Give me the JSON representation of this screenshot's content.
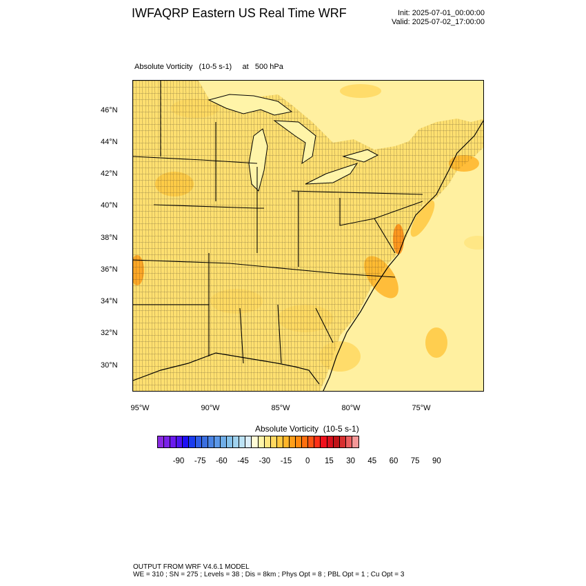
{
  "header": {
    "title": "IWFAQRP Eastern US Real Time WRF",
    "init": "Init: 2025-07-01_00:00:00",
    "valid": "Valid: 2025-07-02_17:00:00"
  },
  "plot": {
    "subtitle": "Absolute Vorticity   (10-5 s-1)     at   500 hPa",
    "lat_labels": [
      "46°N",
      "44°N",
      "42°N",
      "40°N",
      "38°N",
      "36°N",
      "34°N",
      "32°N",
      "30°N"
    ],
    "lon_labels": [
      "95°W",
      "90°W",
      "85°W",
      "80°W",
      "75°W"
    ]
  },
  "colorbar": {
    "title": "Absolute Vorticity  (10-5 s-1)",
    "labels": [
      "-90",
      "-75",
      "-60",
      "-45",
      "-30",
      "-15",
      "0",
      "15",
      "30",
      "45",
      "60",
      "75",
      "90"
    ],
    "colors": [
      "#8a2be2",
      "#7a22e8",
      "#6a1aee",
      "#4c14f0",
      "#1e10f5",
      "#1a3cf0",
      "#2f5de8",
      "#3b6fe0",
      "#4a84e4",
      "#5c98e8",
      "#70aee8",
      "#86c2ea",
      "#a0d2ee",
      "#bce2f4",
      "#dceefa",
      "#fffbd6",
      "#fff4a8",
      "#ffe680",
      "#ffd860",
      "#ffc840",
      "#ffb428",
      "#ff9e1a",
      "#ff8a10",
      "#ff7010",
      "#ff5414",
      "#ff3018",
      "#f0101c",
      "#d8101c",
      "#c01418",
      "#d83030",
      "#ec6060",
      "#f49898"
    ]
  },
  "footer": {
    "line1": "OUTPUT FROM WRF V4.6.1 MODEL",
    "line2": "WE = 310 ; SN = 275 ; Levels = 38 ; Dis = 8km ; Phys Opt = 8 ; PBL Opt = 1 ; Cu Opt = 3"
  }
}
